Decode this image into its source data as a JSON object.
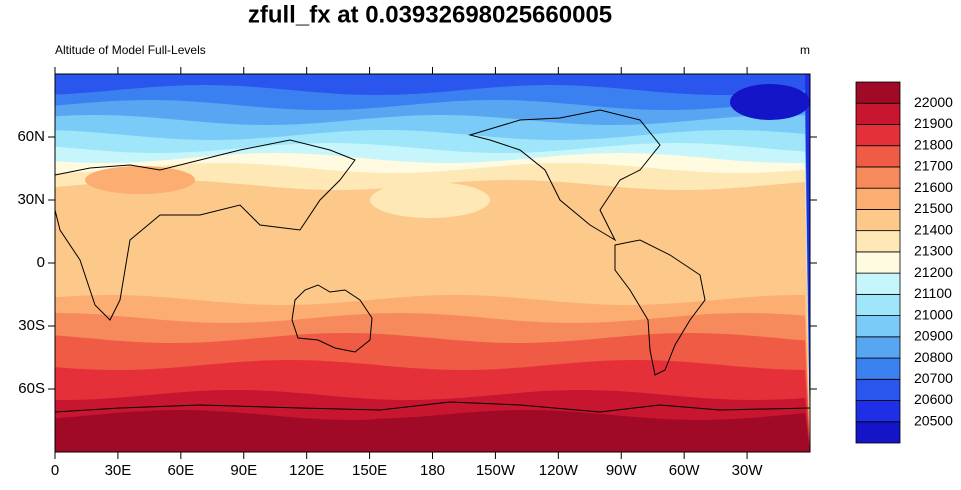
{
  "chart_data": {
    "type": "contour-map",
    "title": "zfull_fx at 0.03932698025660005",
    "left_label": "Altitude of Model Full-Levels",
    "units": "m",
    "xlim": [
      0,
      360
    ],
    "ylim": [
      -90,
      90
    ],
    "xticks": [
      0,
      {
        "value": 30,
        "label": "30E"
      },
      {
        "value": 60,
        "label": "60E"
      },
      {
        "value": 90,
        "label": "90E"
      },
      {
        "value": 120,
        "label": "120E"
      },
      {
        "value": 150,
        "label": "150E"
      },
      180,
      {
        "value": 210,
        "label": "150W"
      },
      {
        "value": 240,
        "label": "120W"
      },
      {
        "value": 270,
        "label": "90W"
      },
      {
        "value": 300,
        "label": "60W"
      },
      {
        "value": 330,
        "label": "30W"
      }
    ],
    "yticks": [
      {
        "value": -60,
        "label": "60S"
      },
      {
        "value": -30,
        "label": "30S"
      },
      0,
      {
        "value": 30,
        "label": "30N"
      },
      {
        "value": 60,
        "label": "60N"
      }
    ],
    "levels": [
      20500,
      20600,
      20700,
      20800,
      20900,
      21000,
      21100,
      21200,
      21300,
      21400,
      21500,
      21600,
      21700,
      21800,
      21900,
      22000
    ],
    "colors": [
      "#1414c8",
      "#1f2fe6",
      "#2a56ee",
      "#3b80f0",
      "#58a6f2",
      "#7acbf7",
      "#a0e6fa",
      "#c6f5fc",
      "#fffbe0",
      "#fee8b5",
      "#fcc98a",
      "#fbad72",
      "#f68a5c",
      "#ef5b45",
      "#e5303a",
      "#c81530",
      "#a10a26"
    ]
  }
}
